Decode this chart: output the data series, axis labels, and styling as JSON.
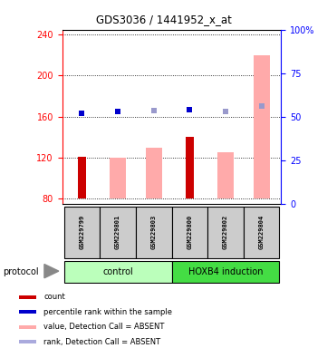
{
  "title": "GDS3036 / 1441952_x_at",
  "samples": [
    "GSM229799",
    "GSM229801",
    "GSM229803",
    "GSM229800",
    "GSM229802",
    "GSM229804"
  ],
  "ylim_left": [
    75,
    245
  ],
  "ylim_right": [
    0,
    100
  ],
  "yticks_left": [
    80,
    120,
    160,
    200,
    240
  ],
  "yticks_right": [
    0,
    25,
    50,
    75,
    100
  ],
  "yright_labels": [
    "0",
    "25",
    "50",
    "75",
    "100%"
  ],
  "count_values": [
    121,
    null,
    null,
    140,
    null,
    null
  ],
  "count_color": "#cc0000",
  "rank_values": [
    163,
    165,
    166,
    167,
    165,
    170
  ],
  "rank_colors": [
    "#0000cc",
    "#0000cc",
    "#9999cc",
    "#0000cc",
    "#9999cc",
    "#9999cc"
  ],
  "value_absent": [
    null,
    120,
    130,
    null,
    125,
    220
  ],
  "value_absent_color": "#ffaaaa",
  "ybase": 80,
  "group_colors": [
    "#bbffbb",
    "#44dd44"
  ],
  "legend_items": [
    {
      "label": "count",
      "color": "#cc0000"
    },
    {
      "label": "percentile rank within the sample",
      "color": "#0000cc"
    },
    {
      "label": "value, Detection Call = ABSENT",
      "color": "#ffaaaa"
    },
    {
      "label": "rank, Detection Call = ABSENT",
      "color": "#aaaadd"
    }
  ]
}
